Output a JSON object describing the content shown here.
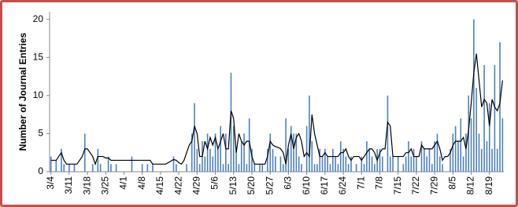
{
  "chart_data": {
    "type": "bar",
    "y_label": "Number of Journal Entries",
    "categories": [
      "3/4",
      null,
      null,
      null,
      null,
      null,
      null,
      "3/11",
      null,
      null,
      null,
      null,
      null,
      null,
      "3/18",
      null,
      null,
      null,
      null,
      null,
      null,
      "3/25",
      null,
      null,
      null,
      null,
      null,
      null,
      "4/1",
      null,
      null,
      null,
      null,
      null,
      null,
      "4/8",
      null,
      null,
      null,
      null,
      null,
      null,
      "4/15",
      null,
      null,
      null,
      null,
      null,
      null,
      "4/22",
      null,
      null,
      null,
      null,
      null,
      null,
      "4/29",
      null,
      null,
      null,
      null,
      null,
      null,
      "5/6",
      null,
      null,
      null,
      null,
      null,
      null,
      "5/13",
      null,
      null,
      null,
      null,
      null,
      null,
      "5/20",
      null,
      null,
      null,
      null,
      null,
      null,
      "5/27",
      null,
      null,
      null,
      null,
      null,
      null,
      "6/3",
      null,
      null,
      null,
      null,
      null,
      null,
      "6/10",
      null,
      null,
      null,
      null,
      null,
      null,
      "6/17",
      null,
      null,
      null,
      null,
      null,
      null,
      "6/24",
      null,
      null,
      null,
      null,
      null,
      null,
      "7/1",
      null,
      null,
      null,
      null,
      null,
      null,
      "7/8",
      null,
      null,
      null,
      null,
      null,
      null,
      "7/15",
      null,
      null,
      null,
      null,
      null,
      null,
      "7/22",
      null,
      null,
      null,
      null,
      null,
      null,
      "7/29",
      null,
      null,
      null,
      null,
      null,
      null,
      "8/5",
      null,
      null,
      null,
      null,
      null,
      null,
      "8/12",
      null,
      null,
      null,
      null,
      null,
      null,
      "8/19",
      null,
      null,
      null,
      null,
      null
    ],
    "values": [
      2,
      0,
      1.5,
      0,
      3,
      1,
      0,
      1,
      0,
      1,
      0,
      0,
      0,
      5,
      0,
      0,
      1,
      0,
      3,
      1,
      0,
      0,
      2,
      1,
      0,
      1,
      0,
      0,
      0,
      0,
      0,
      2,
      0,
      0,
      0,
      1,
      0,
      1,
      0,
      1,
      0,
      0,
      0,
      0,
      0,
      0,
      0,
      2,
      1,
      0,
      0,
      0,
      1,
      0,
      5,
      9,
      3,
      1,
      4,
      2,
      5,
      3,
      2,
      5,
      3,
      6,
      1,
      5,
      1,
      13,
      6,
      3,
      1,
      4,
      5,
      1,
      7,
      3,
      1,
      0,
      1,
      1,
      0,
      3,
      5,
      3,
      2,
      0,
      2,
      1,
      7,
      3,
      6,
      5,
      5,
      2,
      1,
      0,
      6,
      10,
      4,
      1,
      1,
      3,
      2,
      3,
      2,
      1,
      3,
      2,
      1,
      4,
      3,
      2,
      1,
      2,
      0,
      1,
      0,
      2,
      1,
      4,
      3,
      2,
      1,
      3,
      3,
      2,
      0,
      10,
      2,
      2,
      0,
      2,
      0,
      1,
      2,
      4,
      2,
      3,
      2,
      0,
      4,
      3,
      2,
      3,
      1,
      4,
      5,
      2,
      1,
      0,
      0,
      3,
      5,
      6,
      4,
      7,
      2,
      5,
      10,
      7,
      20,
      11,
      5,
      3,
      14,
      4,
      9,
      3,
      14,
      3,
      17,
      7
    ],
    "color": "#4f81bd",
    "trend": {
      "type": "line",
      "color": "#000000",
      "values": [
        1.5,
        1.5,
        1.5,
        2,
        2.5,
        1.5,
        1,
        1,
        1,
        1,
        1,
        1.5,
        2,
        3,
        3,
        2.5,
        2,
        1,
        2,
        2,
        2,
        1.8,
        1.8,
        1.5,
        1.5,
        1.5,
        1.5,
        1.5,
        1.5,
        1.5,
        1.5,
        1.5,
        1.5,
        1.5,
        1.5,
        1.5,
        1.5,
        1.5,
        1.5,
        1,
        1,
        1,
        1,
        1,
        1,
        1.2,
        1.4,
        1.6,
        1.5,
        1.2,
        1,
        1.5,
        2.5,
        3.5,
        4,
        6,
        5,
        2,
        2,
        4,
        3,
        4.5,
        3.5,
        4.5,
        3,
        4,
        5,
        3,
        3,
        8,
        7,
        2.5,
        5,
        4,
        3.5,
        4,
        4,
        2,
        1,
        1,
        1,
        1,
        1,
        2,
        4,
        3.5,
        3.3,
        3.2,
        3,
        2.5,
        1,
        3.5,
        5,
        3,
        4.5,
        5,
        4,
        2,
        2.5,
        2,
        7.5,
        5,
        3.5,
        2,
        2,
        2.5,
        2,
        2,
        2,
        2,
        2,
        2.5,
        2.5,
        3,
        2,
        1.5,
        2,
        2,
        2,
        1.5,
        2,
        2.5,
        3,
        3,
        2.5,
        1.5,
        2.5,
        3,
        3,
        6.5,
        6,
        2,
        2,
        2,
        2,
        2,
        2.5,
        2.5,
        3,
        2,
        2,
        2,
        3.5,
        3,
        3,
        3,
        3,
        3.5,
        4,
        3,
        1.5,
        2,
        2,
        2.5,
        3.5,
        4,
        4,
        4,
        4.5,
        3,
        5.5,
        9,
        13,
        15.5,
        12,
        8.5,
        9.5,
        9,
        6,
        9.5,
        8.5,
        8,
        9,
        12
      ]
    },
    "ylim": [
      0,
      21
    ],
    "yticks": [
      0,
      5,
      10,
      15,
      20
    ],
    "grid": false
  }
}
